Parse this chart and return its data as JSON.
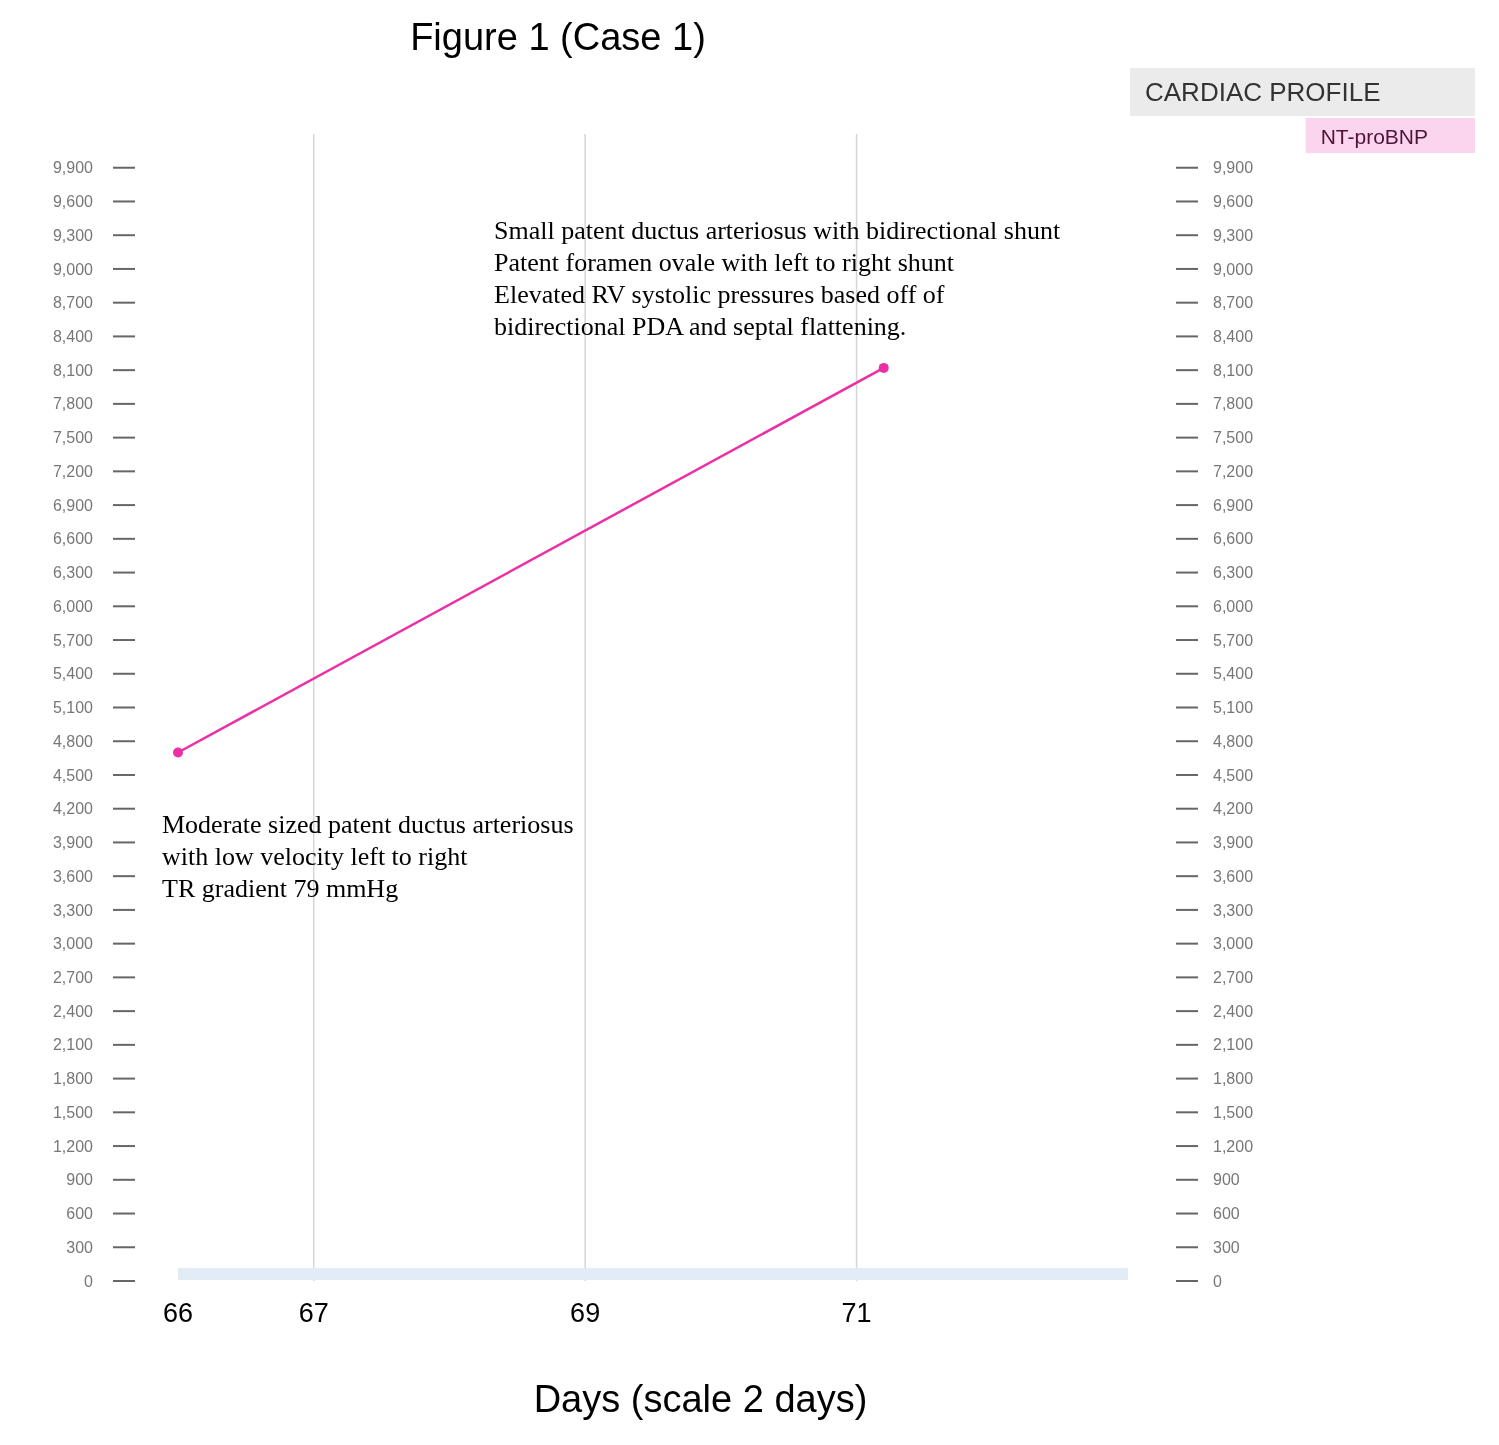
{
  "chart_data": {
    "type": "line",
    "title": "Figure 1 (Case 1)",
    "xlabel": "Days (scale 2 days)",
    "legend_title": "CARDIAC PROFILE",
    "x": [
      66,
      71.2
    ],
    "series": [
      {
        "name": "NT-proBNP",
        "color": "#ec2fa6",
        "values": [
          4700,
          8120
        ]
      }
    ],
    "xlim": [
      66,
      73
    ],
    "xticks": [
      66,
      67,
      69,
      71
    ],
    "ylim": [
      0,
      10200
    ],
    "yticks": [
      0,
      300,
      600,
      900,
      {
        "value": 1200,
        "label": "1,200"
      },
      {
        "value": 1500,
        "label": "1,500"
      },
      {
        "value": 1800,
        "label": "1,800"
      },
      {
        "value": 2100,
        "label": "2,100"
      },
      {
        "value": 2400,
        "label": "2,400"
      },
      {
        "value": 2700,
        "label": "2,700"
      },
      {
        "value": 3000,
        "label": "3,000"
      },
      {
        "value": 3300,
        "label": "3,300"
      },
      {
        "value": 3600,
        "label": "3,600"
      },
      {
        "value": 3900,
        "label": "3,900"
      },
      {
        "value": 4200,
        "label": "4,200"
      },
      {
        "value": 4500,
        "label": "4,500"
      },
      {
        "value": 4800,
        "label": "4,800"
      },
      {
        "value": 5100,
        "label": "5,100"
      },
      {
        "value": 5400,
        "label": "5,400"
      },
      {
        "value": 5700,
        "label": "5,700"
      },
      {
        "value": 6000,
        "label": "6,000"
      },
      {
        "value": 6300,
        "label": "6,300"
      },
      {
        "value": 6600,
        "label": "6,600"
      },
      {
        "value": 6900,
        "label": "6,900"
      },
      {
        "value": 7200,
        "label": "7,200"
      },
      {
        "value": 7500,
        "label": "7,500"
      },
      {
        "value": 7800,
        "label": "7,800"
      },
      {
        "value": 8100,
        "label": "8,100"
      },
      {
        "value": 8400,
        "label": "8,400"
      },
      {
        "value": 8700,
        "label": "8,700"
      },
      {
        "value": 9000,
        "label": "9,000"
      },
      {
        "value": 9300,
        "label": "9,300"
      },
      {
        "value": 9600,
        "label": "9,600"
      },
      {
        "value": 9900,
        "label": "9,900"
      }
    ],
    "y2lim": [
      0,
      10200
    ],
    "y2ticks": [
      0,
      300,
      600,
      900,
      {
        "value": 1200,
        "label": "1,200"
      },
      {
        "value": 1500,
        "label": "1,500"
      },
      {
        "value": 1800,
        "label": "1,800"
      },
      {
        "value": 2100,
        "label": "2,100"
      },
      {
        "value": 2400,
        "label": "2,400"
      },
      {
        "value": 2700,
        "label": "2,700"
      },
      {
        "value": 3000,
        "label": "3,000"
      },
      {
        "value": 3300,
        "label": "3,300"
      },
      {
        "value": 3600,
        "label": "3,600"
      },
      {
        "value": 3900,
        "label": "3,900"
      },
      {
        "value": 4200,
        "label": "4,200"
      },
      {
        "value": 4500,
        "label": "4,500"
      },
      {
        "value": 4800,
        "label": "4,800"
      },
      {
        "value": 5100,
        "label": "5,100"
      },
      {
        "value": 5400,
        "label": "5,400"
      },
      {
        "value": 5700,
        "label": "5,700"
      },
      {
        "value": 6000,
        "label": "6,000"
      },
      {
        "value": 6300,
        "label": "6,300"
      },
      {
        "value": 6600,
        "label": "6,600"
      },
      {
        "value": 6900,
        "label": "6,900"
      },
      {
        "value": 7200,
        "label": "7,200"
      },
      {
        "value": 7500,
        "label": "7,500"
      },
      {
        "value": 7800,
        "label": "7,800"
      },
      {
        "value": 8100,
        "label": "8,100"
      },
      {
        "value": 8400,
        "label": "8,400"
      },
      {
        "value": 8700,
        "label": "8,700"
      },
      {
        "value": 9000,
        "label": "9,000"
      },
      {
        "value": 9300,
        "label": "9,300"
      },
      {
        "value": 9600,
        "label": "9,600"
      },
      {
        "value": 9900,
        "label": "9,900"
      }
    ],
    "grid": "x",
    "legend": "top right",
    "marker": "circle",
    "line_style": "solid",
    "annotations": [
      {
        "text": "Small patent ductus arteriosus with bidirectional shunt\nPatent foramen ovale with left to right shunt\nElevated RV systolic pressures based off of\nbidirectional PDA and septal flattening.",
        "x": 71.2,
        "y": 8120
      },
      {
        "text": "Moderate sized patent ductus arteriosus\nwith low velocity left to right\nTR gradient 79 mmHg",
        "x": 66,
        "y": 4700
      }
    ]
  }
}
